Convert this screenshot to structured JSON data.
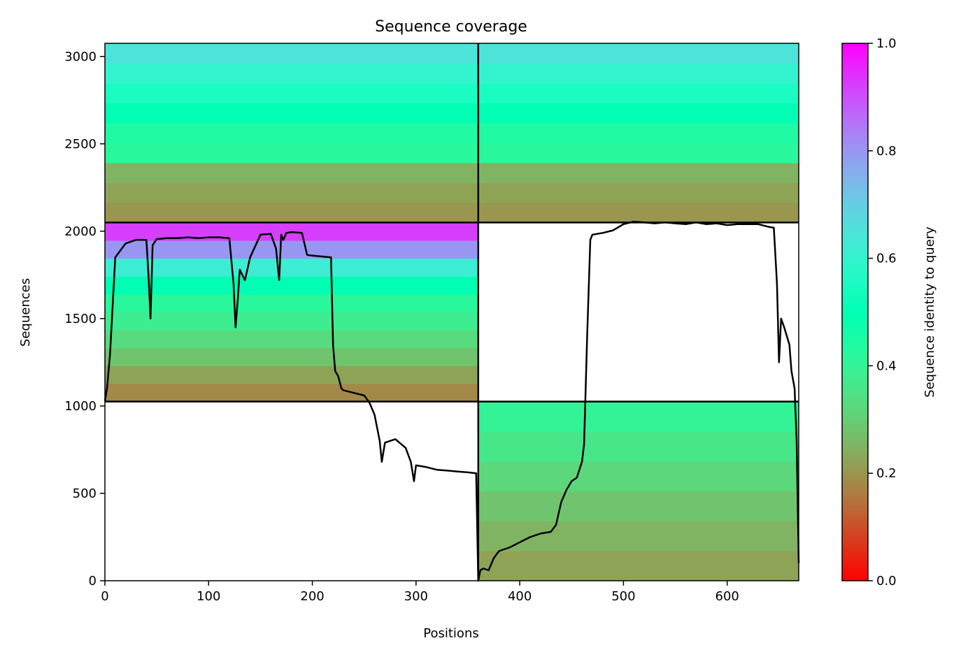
{
  "chart_data": {
    "type": "heatmap",
    "title": "Sequence coverage",
    "xlabel": "Positions",
    "ylabel": "Sequences",
    "xlim": [
      0,
      669
    ],
    "ylim": [
      0,
      3075
    ],
    "x_ticks": [
      0,
      100,
      200,
      300,
      400,
      500,
      600
    ],
    "y_ticks": [
      0,
      500,
      1000,
      1500,
      2000,
      2500,
      3000
    ],
    "divider_x": [
      360
    ],
    "divider_y": [
      1025,
      2050
    ],
    "colorbar": {
      "label": "Sequence identity to query",
      "colormap": "rainbow_r",
      "range": [
        0.0,
        1.0
      ],
      "ticks": [
        "0.0",
        "0.2",
        "0.4",
        "0.6",
        "0.8",
        "1.0"
      ]
    },
    "blocks": [
      {
        "x": [
          0,
          360
        ],
        "y": [
          1025,
          2050
        ],
        "identity": [
          0.18,
          0.22,
          0.28,
          0.33,
          0.38,
          0.42,
          0.5,
          0.62,
          0.8,
          0.92
        ]
      },
      {
        "x": [
          360,
          669
        ],
        "y": [
          0,
          1025
        ],
        "identity": [
          0.22,
          0.25,
          0.28,
          0.32,
          0.36,
          0.4
        ]
      },
      {
        "x": [
          0,
          360
        ],
        "y": [
          2050,
          3075
        ],
        "identity": [
          0.2,
          0.22,
          0.25,
          0.42,
          0.44,
          0.5,
          0.55,
          0.6,
          0.65
        ]
      },
      {
        "x": [
          360,
          669
        ],
        "y": [
          2050,
          3075
        ],
        "identity": [
          0.2,
          0.22,
          0.25,
          0.42,
          0.44,
          0.5,
          0.55,
          0.6,
          0.65
        ]
      }
    ],
    "coverage_line": {
      "x": [
        0,
        2,
        5,
        10,
        20,
        30,
        40,
        42,
        44,
        46,
        50,
        60,
        70,
        80,
        90,
        100,
        110,
        120,
        124,
        126,
        128,
        130,
        135,
        140,
        150,
        160,
        165,
        168,
        170,
        172,
        175,
        180,
        190,
        195,
        200,
        210,
        218,
        220,
        222,
        225,
        228,
        230,
        240,
        250,
        255,
        260,
        265,
        267,
        270,
        280,
        290,
        295,
        298,
        300,
        310,
        320,
        330,
        340,
        350,
        358,
        360,
        362,
        365,
        370,
        375,
        380,
        390,
        400,
        410,
        420,
        430,
        435,
        440,
        445,
        450,
        455,
        460,
        462,
        465,
        468,
        470,
        480,
        490,
        500,
        510,
        520,
        530,
        540,
        550,
        560,
        570,
        580,
        590,
        600,
        610,
        620,
        630,
        640,
        645,
        648,
        650,
        652,
        655,
        660,
        662,
        665,
        667,
        669
      ],
      "y": [
        1030,
        1100,
        1300,
        1850,
        1930,
        1950,
        1950,
        1750,
        1500,
        1920,
        1955,
        1960,
        1960,
        1965,
        1960,
        1965,
        1965,
        1960,
        1700,
        1450,
        1600,
        1780,
        1720,
        1850,
        1980,
        1985,
        1900,
        1720,
        1980,
        1950,
        1990,
        1995,
        1990,
        1865,
        1860,
        1855,
        1850,
        1350,
        1200,
        1170,
        1100,
        1090,
        1075,
        1060,
        1020,
        950,
        800,
        680,
        790,
        810,
        760,
        680,
        570,
        660,
        650,
        635,
        630,
        625,
        620,
        615,
        0,
        60,
        70,
        60,
        130,
        170,
        190,
        220,
        250,
        270,
        280,
        320,
        450,
        520,
        570,
        590,
        680,
        780,
        1400,
        1950,
        1980,
        1990,
        2005,
        2040,
        2055,
        2050,
        2045,
        2050,
        2045,
        2040,
        2050,
        2040,
        2045,
        2035,
        2040,
        2040,
        2040,
        2025,
        2020,
        1700,
        1250,
        1500,
        1450,
        1350,
        1200,
        1100,
        800,
        100
      ]
    }
  }
}
